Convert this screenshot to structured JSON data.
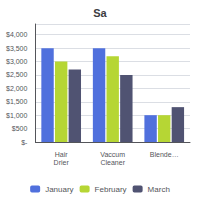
{
  "chart_data": {
    "type": "bar",
    "title": "Sa",
    "categories": [
      "Hair\nDrier",
      "Vaccum\nCleaner",
      "Blende…"
    ],
    "series": [
      {
        "name": "January",
        "values": [
          3500,
          3500,
          1000
        ]
      },
      {
        "name": "February",
        "values": [
          3000,
          3200,
          1000
        ]
      },
      {
        "name": "March",
        "values": [
          2700,
          2500,
          1300
        ]
      }
    ],
    "ylim": [
      0,
      4400
    ],
    "yticks": [
      {
        "value": 0,
        "label": "$-"
      },
      {
        "value": 500,
        "label": "$500"
      },
      {
        "value": 1000,
        "label": "$1,000"
      },
      {
        "value": 1500,
        "label": "$1,500"
      },
      {
        "value": 2000,
        "label": "$2,000"
      },
      {
        "value": 2500,
        "label": "$2,500"
      },
      {
        "value": 3000,
        "label": "$3,000"
      },
      {
        "value": 3500,
        "label": "$3,500"
      },
      {
        "value": 4000,
        "label": "$4,000"
      }
    ],
    "grid": true,
    "legend": "bottom"
  }
}
